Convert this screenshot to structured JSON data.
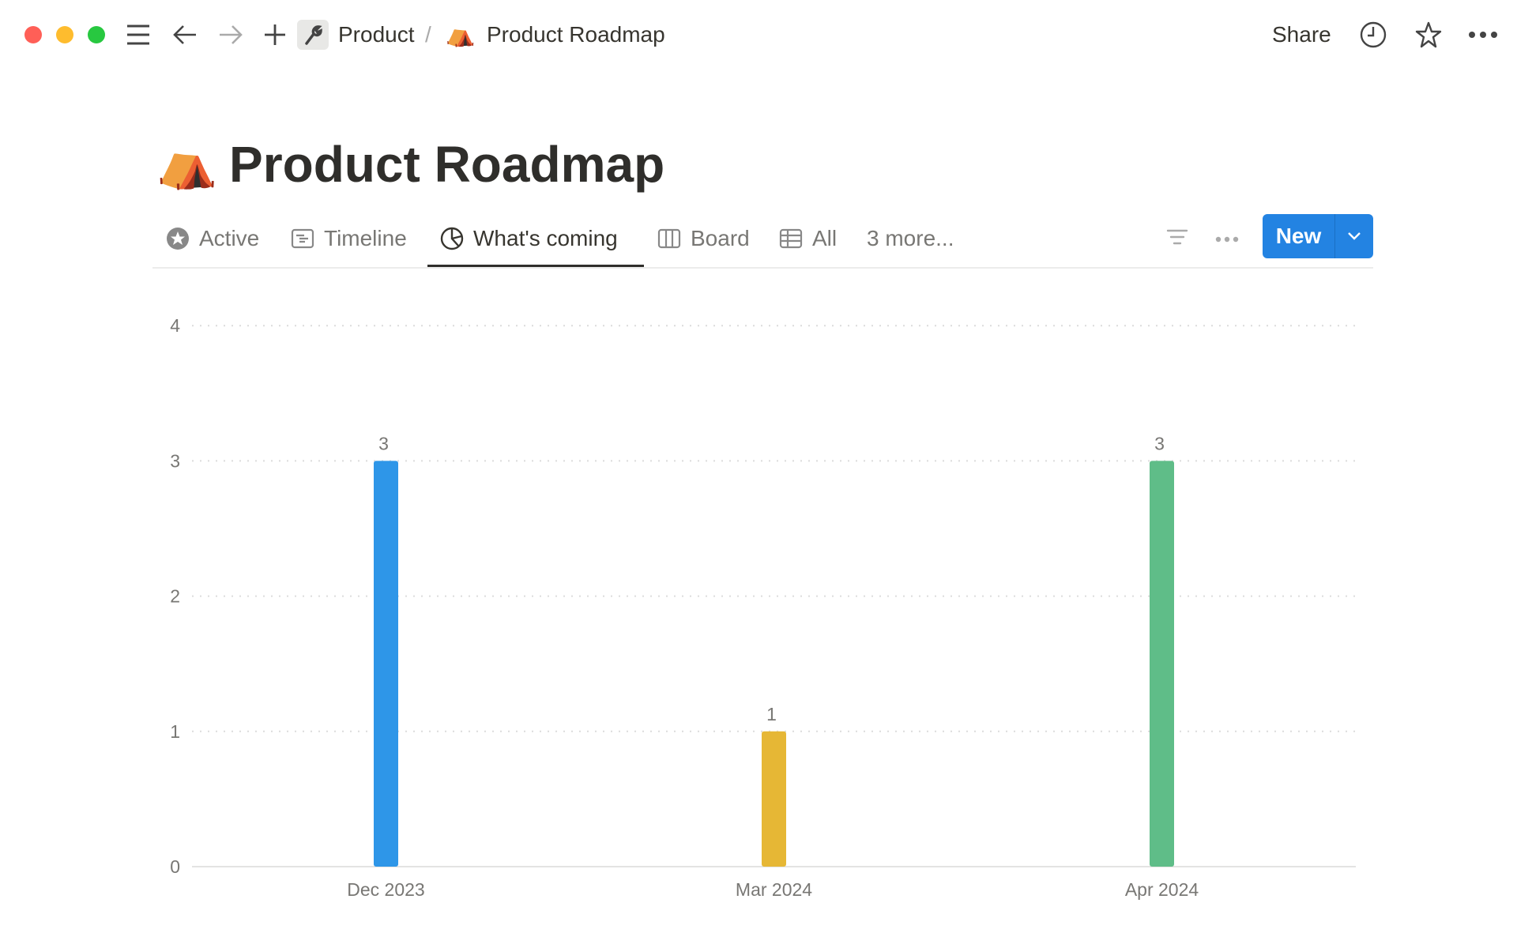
{
  "topbar": {
    "breadcrumb": [
      {
        "label": "Product",
        "icon": "wrench-icon"
      },
      {
        "label": "Product Roadmap",
        "icon": "tent-emoji"
      }
    ],
    "separator": "/",
    "share_label": "Share",
    "tent_emoji": "⛺"
  },
  "page": {
    "title": "Product Roadmap",
    "icon": "tent-emoji"
  },
  "tabs": [
    {
      "label": "Active",
      "icon": "star-circle-icon"
    },
    {
      "label": "Timeline",
      "icon": "timeline-icon"
    },
    {
      "label": "What's coming",
      "icon": "chart-icon",
      "active": true
    },
    {
      "label": "Board",
      "icon": "board-icon"
    },
    {
      "label": "All",
      "icon": "table-icon"
    }
  ],
  "more_tabs_label": "3 more...",
  "new_button_label": "New",
  "colors": {
    "accent": "#2383e2",
    "traffic_red": "#ff5f57",
    "traffic_yellow": "#febc2e",
    "traffic_green": "#28c840"
  },
  "chart_data": {
    "type": "bar",
    "categories": [
      "Dec 2023",
      "Mar 2024",
      "Apr 2024"
    ],
    "values": [
      3,
      1,
      3
    ],
    "colors": [
      "#2e96e8",
      "#e6b735",
      "#5fbd88"
    ],
    "ylim": [
      0,
      4
    ],
    "yticks": [
      0,
      1,
      2,
      3,
      4
    ],
    "grid": true,
    "data_labels": true
  }
}
